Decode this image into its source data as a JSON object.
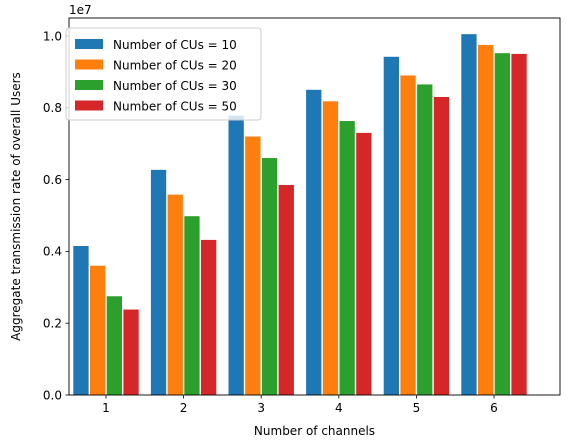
{
  "chart_data": {
    "type": "bar",
    "categories": [
      "1",
      "2",
      "3",
      "4",
      "5",
      "6"
    ],
    "series": [
      {
        "name": "Number of CUs = 10",
        "color": "#1f77b4",
        "values": [
          4.15,
          6.27,
          7.78,
          8.5,
          9.42,
          10.05
        ]
      },
      {
        "name": "Number of CUs = 20",
        "color": "#ff7f0e",
        "values": [
          3.6,
          5.58,
          7.2,
          8.18,
          8.9,
          9.75
        ]
      },
      {
        "name": "Number of CUs = 30",
        "color": "#2ca02c",
        "values": [
          2.75,
          4.98,
          6.6,
          7.63,
          8.65,
          9.52
        ]
      },
      {
        "name": "Number of CUs = 50",
        "color": "#d62728",
        "values": [
          2.38,
          4.32,
          5.85,
          7.3,
          8.3,
          9.5
        ]
      }
    ],
    "title": "",
    "xlabel": "Number of channels",
    "ylabel": "Aggregate transmission rate of overall Users",
    "y_offset_label": "1e7",
    "ylim": [
      0,
      10.5
    ],
    "yticks": [
      "0.0",
      "0.2",
      "0.4",
      "0.6",
      "0.8",
      "1.0"
    ],
    "ytick_values": [
      0,
      2,
      4,
      6,
      8,
      10
    ],
    "grid": false,
    "legend_position": "upper-left"
  }
}
